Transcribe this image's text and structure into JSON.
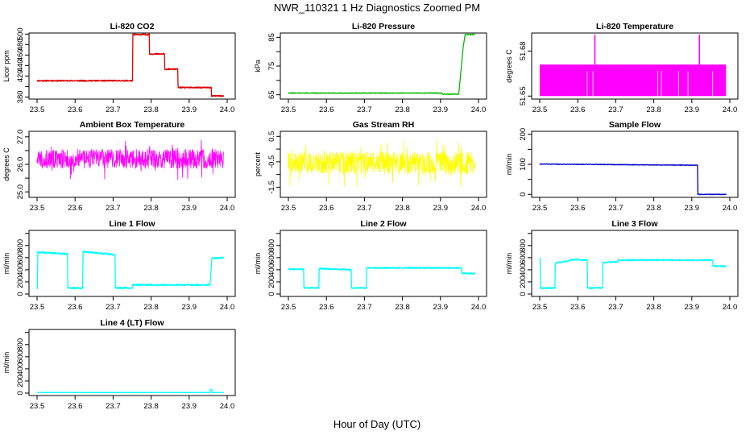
{
  "figure": {
    "title": "NWR_110321  1 Hz Diagnostics Zoomed PM",
    "xlabel": "Hour of Day (UTC)"
  },
  "chart_data": [
    {
      "type": "line",
      "title": "Li-820 CO2",
      "ylabel": "Licor ppm",
      "color": "#dd0000",
      "xlim": [
        23.5,
        24.0
      ],
      "ylim": [
        376,
        502
      ],
      "yticks": [
        380,
        400,
        420,
        440,
        460,
        480,
        500
      ],
      "yticklabels": [
        "380",
        "",
        "420",
        "440",
        "460",
        "480",
        "500"
      ],
      "xticks": [
        23.5,
        23.6,
        23.7,
        23.8,
        23.9,
        24.0
      ],
      "series": [
        {
          "x": [
            23.5,
            23.751,
            23.752,
            23.795,
            23.796,
            23.835,
            23.836,
            23.87,
            23.871,
            23.958,
            23.959,
            23.99
          ],
          "values": [
            411,
            411,
            499,
            499,
            462,
            462,
            433,
            433,
            398,
            398,
            382,
            382
          ]
        }
      ],
      "noise": 1.2,
      "seed": 11
    },
    {
      "type": "line",
      "title": "Li-820 Pressure",
      "ylabel": "kPa",
      "color": "#00bb00",
      "xlim": [
        23.5,
        24.0
      ],
      "ylim": [
        63.5,
        86.5
      ],
      "yticks": [
        65,
        70,
        75,
        80,
        85
      ],
      "yticklabels": [
        "65",
        "",
        "75",
        "",
        "85"
      ],
      "xticks": [
        23.5,
        23.6,
        23.7,
        23.8,
        23.9,
        24.0
      ],
      "series": [
        {
          "x": [
            23.5,
            23.905,
            23.906,
            23.948,
            23.955,
            23.96,
            23.965,
            23.99
          ],
          "values": [
            65.6,
            65.6,
            65.2,
            65.2,
            75,
            82,
            86,
            86
          ]
        }
      ],
      "noise": 0.12,
      "seed": 22
    },
    {
      "type": "bar-fill",
      "title": "Li-820 Temperature",
      "ylabel": "degrees C",
      "color": "#ff00ff",
      "xlim": [
        23.5,
        24.0
      ],
      "ylim": [
        51.648,
        51.692
      ],
      "yticks": [
        51.65,
        51.68
      ],
      "yticklabels": [
        "51.65",
        "51.68"
      ],
      "xticks": [
        23.5,
        23.6,
        23.7,
        23.8,
        23.9,
        24.0
      ],
      "baseline": 51.65,
      "level": 51.671,
      "xrange": [
        23.5,
        23.99
      ],
      "spikes": [
        {
          "x": 23.645,
          "value": 51.691
        },
        {
          "x": 23.92,
          "value": 51.691
        }
      ],
      "gaps": [
        23.625,
        23.64,
        23.81,
        23.82,
        23.865,
        23.89,
        23.955
      ]
    },
    {
      "type": "line",
      "title": "Ambient Box Temperature",
      "ylabel": "degrees C",
      "color": "#ff00ff",
      "xlim": [
        23.5,
        24.0
      ],
      "ylim": [
        24.8,
        27.2
      ],
      "yticks": [
        25.0,
        25.5,
        26.0,
        26.5,
        27.0
      ],
      "yticklabels": [
        "25.0",
        "",
        "26.0",
        "",
        "27.0"
      ],
      "xticks": [
        23.5,
        23.6,
        23.7,
        23.8,
        23.9,
        24.0
      ],
      "series": [
        {
          "x": [
            23.5,
            23.99
          ],
          "values": [
            26.2,
            26.2
          ]
        }
      ],
      "noise": 0.35,
      "spiky": true,
      "seed": 33
    },
    {
      "type": "line",
      "title": "Gas Stream RH",
      "ylabel": "percent",
      "color": "#ffff00",
      "xlim": [
        23.5,
        24.0
      ],
      "ylim": [
        -1.9,
        0.7
      ],
      "yticks": [
        -1.5,
        -1.0,
        -0.5,
        0.0,
        0.5
      ],
      "yticklabels": [
        "-1.5",
        "",
        "-0.5",
        "",
        "0.5"
      ],
      "xticks": [
        23.5,
        23.6,
        23.7,
        23.8,
        23.9,
        24.0
      ],
      "series": [
        {
          "x": [
            23.5,
            23.99
          ],
          "values": [
            -0.55,
            -0.55
          ]
        }
      ],
      "noise": 0.45,
      "spiky": true,
      "seed": 44
    },
    {
      "type": "line",
      "title": "Sample Flow",
      "ylabel": "ml/min",
      "color": "#0000cc",
      "xlim": [
        23.5,
        24.0
      ],
      "ylim": [
        -10,
        210
      ],
      "yticks": [
        0,
        50,
        100,
        150,
        200
      ],
      "yticklabels": [
        "0",
        "",
        "100",
        "",
        "200"
      ],
      "xticks": [
        23.5,
        23.6,
        23.7,
        23.8,
        23.9,
        24.0
      ],
      "series": [
        {
          "x": [
            23.5,
            23.915,
            23.916,
            23.99
          ],
          "values": [
            101,
            97,
            0,
            0
          ]
        }
      ],
      "noise": 1.0,
      "seed": 55
    },
    {
      "type": "line",
      "title": "Line 1 Flow",
      "ylabel": "ml/min",
      "color": "#00ffff",
      "xlim": [
        23.5,
        24.0
      ],
      "ylim": [
        -40,
        1050
      ],
      "yticks": [
        0,
        200,
        400,
        600,
        800,
        1000
      ],
      "yticklabels": [
        "0",
        "200",
        "400",
        "600",
        "800",
        ""
      ],
      "xticks": [
        23.5,
        23.6,
        23.7,
        23.8,
        23.9,
        24.0
      ],
      "series": [
        {
          "x": [
            23.5,
            23.501,
            23.502,
            23.58,
            23.581,
            23.62,
            23.621,
            23.705,
            23.706,
            23.75,
            23.751,
            23.955,
            23.96,
            23.99
          ],
          "values": [
            100,
            100,
            690,
            660,
            100,
            100,
            700,
            650,
            100,
            100,
            150,
            150,
            590,
            600
          ]
        }
      ],
      "noise": 14,
      "seed": 66
    },
    {
      "type": "line",
      "title": "Line 2 Flow",
      "ylabel": "ml/min",
      "color": "#00ffff",
      "xlim": [
        23.5,
        24.0
      ],
      "ylim": [
        -40,
        1050
      ],
      "yticks": [
        0,
        200,
        400,
        600,
        800,
        1000
      ],
      "yticklabels": [
        "0",
        "200",
        "400",
        "600",
        "800",
        ""
      ],
      "xticks": [
        23.5,
        23.6,
        23.7,
        23.8,
        23.9,
        24.0
      ],
      "series": [
        {
          "x": [
            23.5,
            23.54,
            23.541,
            23.58,
            23.581,
            23.665,
            23.666,
            23.705,
            23.706,
            23.955,
            23.956,
            23.99
          ],
          "values": [
            410,
            410,
            100,
            100,
            420,
            400,
            100,
            100,
            430,
            430,
            340,
            340
          ]
        }
      ],
      "noise": 12,
      "seed": 77
    },
    {
      "type": "line",
      "title": "Line 3 Flow",
      "ylabel": "ml/min",
      "color": "#00ffff",
      "xlim": [
        23.5,
        24.0
      ],
      "ylim": [
        -40,
        1050
      ],
      "yticks": [
        0,
        200,
        400,
        600,
        800,
        1000
      ],
      "yticklabels": [
        "0",
        "200",
        "400",
        "600",
        "800",
        ""
      ],
      "xticks": [
        23.5,
        23.6,
        23.7,
        23.8,
        23.9,
        24.0
      ],
      "series": [
        {
          "x": [
            23.5,
            23.501,
            23.502,
            23.54,
            23.541,
            23.58,
            23.581,
            23.625,
            23.626,
            23.665,
            23.666,
            23.705,
            23.706,
            23.955,
            23.956,
            23.99
          ],
          "values": [
            580,
            580,
            100,
            100,
            510,
            550,
            570,
            560,
            100,
            100,
            520,
            530,
            560,
            560,
            460,
            460
          ]
        }
      ],
      "noise": 12,
      "seed": 88
    },
    {
      "type": "line",
      "title": "Line 4 (LT) Flow",
      "ylabel": "ml/min",
      "color": "#00ffff",
      "xlim": [
        23.5,
        24.0
      ],
      "ylim": [
        -40,
        1050
      ],
      "yticks": [
        0,
        200,
        400,
        600,
        800,
        1000
      ],
      "yticklabels": [
        "0",
        "200",
        "400",
        "600",
        "800",
        ""
      ],
      "xticks": [
        23.5,
        23.6,
        23.7,
        23.8,
        23.9,
        24.0
      ],
      "series": [
        {
          "x": [
            23.5,
            23.955,
            23.956,
            23.96,
            23.961,
            23.99
          ],
          "values": [
            10,
            10,
            60,
            60,
            10,
            10
          ]
        }
      ],
      "noise": 2,
      "seed": 99
    }
  ]
}
